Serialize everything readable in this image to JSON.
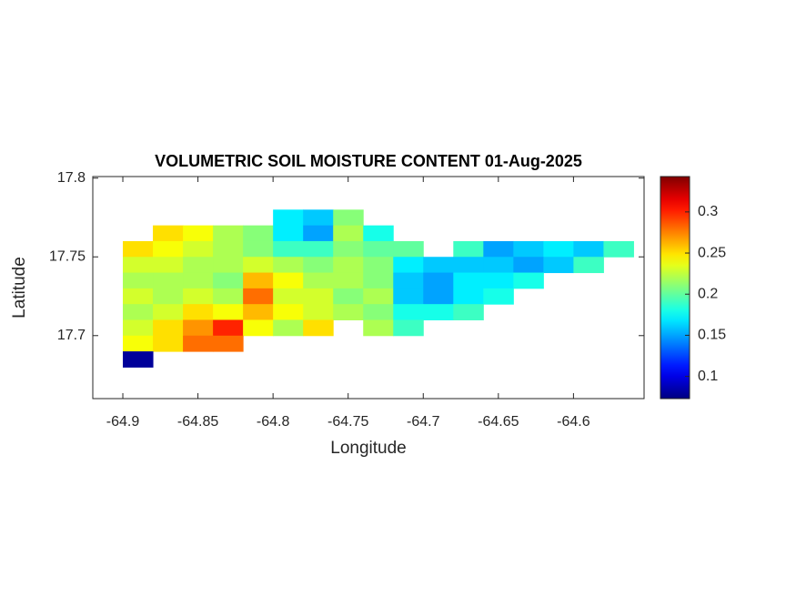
{
  "chart_data": {
    "type": "heatmap",
    "title": "VOLUMETRIC SOIL MOISTURE CONTENT 01-Aug-2025",
    "xlabel": "Longitude",
    "ylabel": "Latitude",
    "x": [
      -64.89,
      -64.87,
      -64.85,
      -64.83,
      -64.81,
      -64.79,
      -64.77,
      -64.75,
      -64.73,
      -64.71,
      -64.69,
      -64.67,
      -64.65,
      -64.63,
      -64.61,
      -64.59,
      -64.57
    ],
    "y": [
      17.775,
      17.765,
      17.755,
      17.745,
      17.735,
      17.725,
      17.715,
      17.705,
      17.695,
      17.685
    ],
    "values": [
      [
        null,
        null,
        null,
        null,
        null,
        0.17,
        0.16,
        0.21,
        null,
        null,
        null,
        null,
        null,
        null,
        null,
        null,
        null
      ],
      [
        null,
        0.25,
        0.24,
        0.22,
        0.21,
        0.17,
        0.15,
        0.22,
        0.18,
        null,
        null,
        null,
        null,
        null,
        null,
        null,
        null
      ],
      [
        0.25,
        0.24,
        0.23,
        0.22,
        0.21,
        0.19,
        0.19,
        0.21,
        0.2,
        0.2,
        null,
        0.19,
        0.15,
        0.16,
        0.17,
        0.16,
        0.19
      ],
      [
        0.23,
        0.23,
        0.22,
        0.22,
        0.23,
        0.22,
        0.21,
        0.22,
        0.21,
        0.17,
        0.16,
        0.16,
        0.16,
        0.15,
        0.16,
        0.19,
        null
      ],
      [
        0.22,
        0.22,
        0.22,
        0.21,
        0.26,
        0.24,
        0.22,
        0.22,
        0.21,
        0.16,
        0.15,
        0.17,
        0.17,
        0.18,
        null,
        null,
        null
      ],
      [
        0.23,
        0.22,
        0.23,
        0.22,
        0.28,
        0.23,
        0.23,
        0.21,
        0.22,
        0.16,
        0.15,
        0.17,
        0.18,
        null,
        null,
        null,
        null
      ],
      [
        0.22,
        0.23,
        0.25,
        0.24,
        0.26,
        0.24,
        0.23,
        0.22,
        0.21,
        0.18,
        0.18,
        0.19,
        null,
        null,
        null,
        null,
        null
      ],
      [
        0.23,
        0.25,
        0.27,
        0.3,
        0.24,
        0.22,
        0.25,
        null,
        0.22,
        0.19,
        null,
        null,
        null,
        null,
        null,
        null,
        null
      ],
      [
        0.24,
        0.25,
        0.28,
        0.28,
        null,
        null,
        null,
        null,
        null,
        null,
        null,
        null,
        null,
        null,
        null,
        null,
        null
      ],
      [
        0.08,
        null,
        null,
        null,
        null,
        null,
        null,
        null,
        null,
        null,
        null,
        null,
        null,
        null,
        null,
        null,
        null
      ]
    ],
    "xlim": [
      -64.92,
      -64.553
    ],
    "ylim": [
      17.66,
      17.801
    ],
    "xticks": [
      -64.9,
      -64.85,
      -64.8,
      -64.75,
      -64.7,
      -64.65,
      -64.6
    ],
    "yticks": [
      17.7,
      17.75,
      17.8
    ],
    "colormap": "jet",
    "clim": [
      0.073,
      0.343
    ],
    "cticks": [
      0.1,
      0.15,
      0.2,
      0.25,
      0.3
    ]
  }
}
